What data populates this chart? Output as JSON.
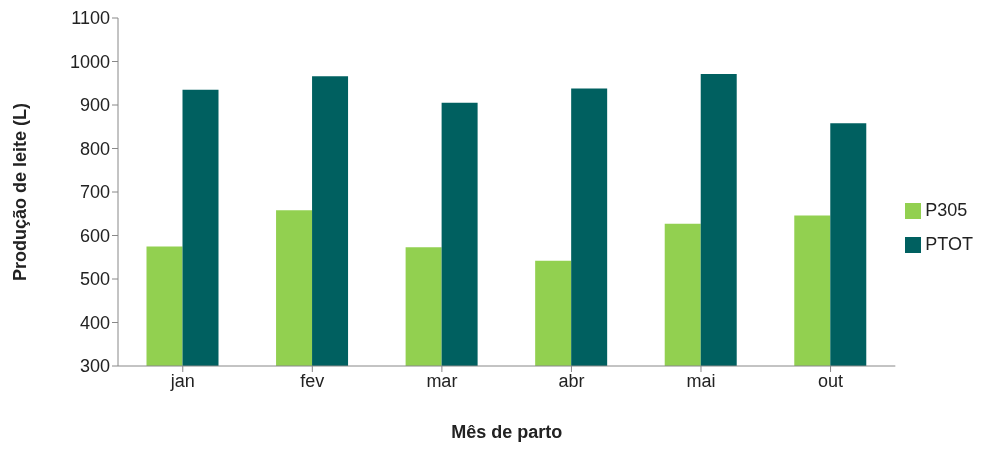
{
  "chart_data": {
    "type": "bar",
    "xlabel": "Mês de parto",
    "ylabel": "Produção de leite (L)",
    "categories": [
      "jan",
      "fev",
      "mar",
      "abr",
      "mai",
      "out"
    ],
    "series": [
      {
        "name": "P305",
        "color": "#92d050",
        "values": [
          575,
          658,
          573,
          542,
          627,
          646
        ]
      },
      {
        "name": "PTOT",
        "color": "#006060",
        "values": [
          935,
          966,
          905,
          938,
          971,
          858
        ]
      }
    ],
    "ylim": [
      300,
      1100
    ],
    "yticks": [
      300,
      400,
      500,
      600,
      700,
      800,
      900,
      1000,
      1100
    ],
    "grid": false,
    "legend": "right"
  }
}
